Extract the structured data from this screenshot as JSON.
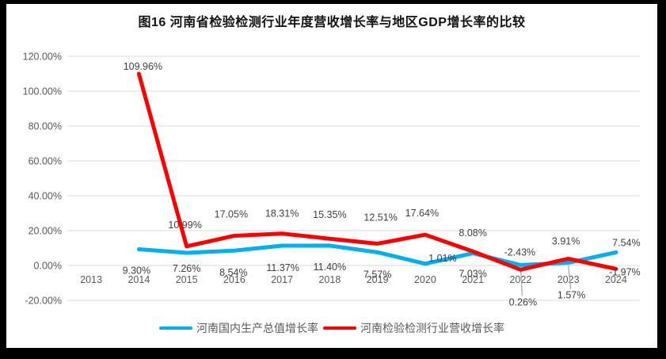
{
  "title": "图16  河南省检验检测行业年度营收增长率与地区GDP增长率的比较",
  "chart_data": {
    "type": "line",
    "title": "图16  河南省检验检测行业年度营收增长率与地区GDP增长率的比较",
    "xlabel": "",
    "ylabel": "",
    "categories": [
      "2013",
      "2014",
      "2015",
      "2016",
      "2017",
      "2018",
      "2019",
      "2020",
      "2021",
      "2022",
      "2023",
      "2024"
    ],
    "series": [
      {
        "key": "henan-gdp-growth",
        "name": "河南国内生产总值增长率",
        "color": "#00B0F0",
        "values": [
          null,
          9.3,
          7.26,
          8.54,
          11.37,
          11.4,
          7.57,
          1.01,
          7.03,
          0.26,
          1.57,
          7.54
        ],
        "labels": [
          null,
          "9.30%",
          "7.26%",
          "8.54%",
          "11.37%",
          "11.40%",
          "7.57%",
          "1.01%",
          "7.03%",
          "0.26%",
          "1.57%",
          "7.54%"
        ],
        "label_offsets": [
          null,
          [
            -3,
            31
          ],
          [
            0,
            24
          ],
          [
            -1,
            32
          ],
          [
            1,
            32
          ],
          [
            0,
            31
          ],
          [
            0,
            32
          ],
          [
            22,
            -3
          ],
          [
            0,
            30
          ],
          [
            3,
            51
          ],
          [
            4,
            45
          ],
          [
            13,
            -8
          ]
        ],
        "leader_indices": [
          9,
          10
        ]
      },
      {
        "key": "henan-testing-industry-revenue-growth",
        "name": "河南检验检测行业营收增长率",
        "color": "#FF0000",
        "values": [
          null,
          109.96,
          10.99,
          17.05,
          18.31,
          15.35,
          12.51,
          17.64,
          8.08,
          -2.43,
          3.91,
          -1.97
        ],
        "labels": [
          null,
          "109.96%",
          "10.99%",
          "17.05%",
          "18.31%",
          "15.35%",
          "12.51%",
          "17.64%",
          "8.08%",
          "-2.43%",
          "3.91%",
          "-1.97%"
        ],
        "label_offsets": [
          null,
          [
            5,
            -5
          ],
          [
            -2,
            -23
          ],
          [
            -4,
            -23
          ],
          [
            0,
            -21
          ],
          [
            0,
            -26
          ],
          [
            4,
            -29
          ],
          [
            -4,
            -23
          ],
          [
            0,
            -19
          ],
          [
            -1,
            -18
          ],
          [
            -3,
            -18
          ],
          [
            11,
            8
          ]
        ],
        "leader_indices": []
      }
    ],
    "ylim": [
      -20,
      120
    ],
    "yticks": [
      {
        "v": 120,
        "label": "120.00%"
      },
      {
        "v": 100,
        "label": "100.00%"
      },
      {
        "v": 80,
        "label": "80.00%"
      },
      {
        "v": 60,
        "label": "60.00%"
      },
      {
        "v": 40,
        "label": "40.00%"
      },
      {
        "v": 20,
        "label": "20.00%"
      },
      {
        "v": 0,
        "label": "0.00%"
      },
      {
        "v": -20,
        "label": "-20.00%"
      }
    ],
    "grid": true,
    "legend_position": "bottom",
    "gridline_color": "#D9D9D9",
    "leader_line_color": "#A6A6A6"
  }
}
